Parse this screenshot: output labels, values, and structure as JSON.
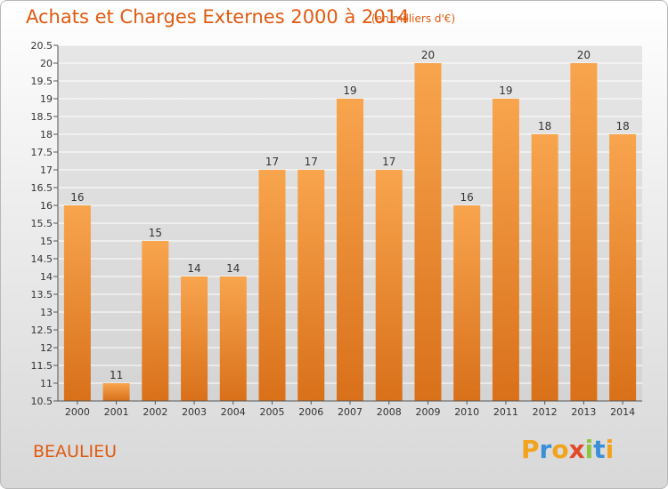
{
  "header": {
    "title": "Achats et Charges Externes 2000 à 2014",
    "subtitle": "(en milliers d'€)"
  },
  "footer": {
    "town": "BEAULIEU",
    "logo": {
      "letters": [
        "P",
        "r",
        "o",
        "x",
        "i",
        "t",
        "i"
      ],
      "colors": [
        "#f2a31b",
        "#3b8fd8",
        "#f2a31b",
        "#e04a2a",
        "#8cc63f",
        "#3b8fd8",
        "#f2a31b"
      ]
    }
  },
  "chart_data": {
    "type": "bar",
    "title": "Achats et Charges Externes 2000 à 2014",
    "subtitle": "(en milliers d'€)",
    "categories": [
      "2000",
      "2001",
      "2002",
      "2003",
      "2004",
      "2005",
      "2006",
      "2007",
      "2008",
      "2009",
      "2010",
      "2011",
      "2012",
      "2013",
      "2014"
    ],
    "values": [
      16,
      11,
      15,
      14,
      14,
      17,
      17,
      19,
      17,
      20,
      16,
      19,
      18,
      20,
      18
    ],
    "data_labels": [
      "16",
      "11",
      "15",
      "14",
      "14",
      "17",
      "17",
      "19",
      "17",
      "20",
      "16",
      "19",
      "18",
      "20",
      "18"
    ],
    "ylim": [
      10.5,
      20.5
    ],
    "yticks": [
      10.5,
      11,
      11.5,
      12,
      12.5,
      13,
      13.5,
      14,
      14.5,
      15,
      15.5,
      16,
      16.5,
      17,
      17.5,
      18,
      18.5,
      19,
      19.5,
      20,
      20.5
    ],
    "ytick_labels": [
      "10.5",
      "11",
      "11.5",
      "12",
      "12.5",
      "13",
      "13.5",
      "14",
      "14.5",
      "15",
      "15.5",
      "16",
      "16.5",
      "17",
      "17.5",
      "18",
      "18.5",
      "19",
      "19.5",
      "20",
      "20.5"
    ],
    "grid": true,
    "colors": {
      "bar_top": "#f8a54e",
      "bar_bottom": "#d9701a",
      "grid": "#ffffff",
      "plot_bg": "#dcdcdc"
    }
  }
}
